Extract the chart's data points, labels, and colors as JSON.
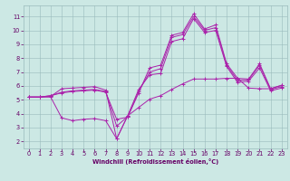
{
  "bg_color": "#cce8e4",
  "line_color": "#aa22aa",
  "grid_color": "#99bbbb",
  "xlabel": "Windchill (Refroidissement éolien,°C)",
  "xlabel_color": "#660066",
  "tick_color": "#660066",
  "xlim_min": -0.5,
  "xlim_max": 23.5,
  "ylim_min": 1.5,
  "ylim_max": 11.8,
  "xticks": [
    0,
    1,
    2,
    3,
    4,
    5,
    6,
    7,
    8,
    9,
    10,
    11,
    12,
    13,
    14,
    15,
    16,
    17,
    18,
    19,
    20,
    21,
    22,
    23
  ],
  "yticks": [
    2,
    3,
    4,
    5,
    6,
    7,
    8,
    9,
    10,
    11
  ],
  "line1_x": [
    0,
    1,
    2,
    3,
    4,
    5,
    6,
    7,
    8,
    9,
    10,
    11,
    12,
    13,
    14,
    15,
    16,
    17,
    18,
    19,
    20,
    21,
    22,
    23
  ],
  "line1_y": [
    5.2,
    5.2,
    5.3,
    5.5,
    5.6,
    5.65,
    5.7,
    5.55,
    3.6,
    3.75,
    5.5,
    7.3,
    7.5,
    9.65,
    9.85,
    11.2,
    10.1,
    10.4,
    7.6,
    6.55,
    6.5,
    7.6,
    5.8,
    6.05
  ],
  "line2_x": [
    0,
    1,
    2,
    3,
    4,
    5,
    6,
    7,
    8,
    9,
    10,
    11,
    12,
    13,
    14,
    15,
    16,
    17,
    18,
    19,
    20,
    21,
    22,
    23
  ],
  "line2_y": [
    5.2,
    5.2,
    5.3,
    5.55,
    5.65,
    5.7,
    5.75,
    5.6,
    3.1,
    3.8,
    5.6,
    7.0,
    7.25,
    9.5,
    9.7,
    11.0,
    10.0,
    10.2,
    7.5,
    6.4,
    6.45,
    7.5,
    5.75,
    5.95
  ],
  "line3_x": [
    0,
    1,
    2,
    3,
    4,
    5,
    6,
    7,
    8,
    9,
    10,
    11,
    12,
    13,
    14,
    15,
    16,
    17,
    18,
    19,
    20,
    21,
    22,
    23
  ],
  "line3_y": [
    5.2,
    5.2,
    5.25,
    5.8,
    5.85,
    5.9,
    5.95,
    5.7,
    2.2,
    3.85,
    5.75,
    6.8,
    6.9,
    9.2,
    9.4,
    10.85,
    9.85,
    10.0,
    7.4,
    6.25,
    6.35,
    7.3,
    5.65,
    5.85
  ],
  "line4_x": [
    0,
    1,
    2,
    3,
    4,
    5,
    6,
    7,
    8,
    9,
    10,
    11,
    12,
    13,
    14,
    15,
    16,
    17,
    18,
    19,
    20,
    21,
    22,
    23
  ],
  "line4_y": [
    5.2,
    5.2,
    5.2,
    3.7,
    3.5,
    3.6,
    3.65,
    3.5,
    2.2,
    3.85,
    4.45,
    5.05,
    5.3,
    5.75,
    6.15,
    6.5,
    6.5,
    6.5,
    6.55,
    6.55,
    5.85,
    5.8,
    5.8,
    6.05
  ]
}
